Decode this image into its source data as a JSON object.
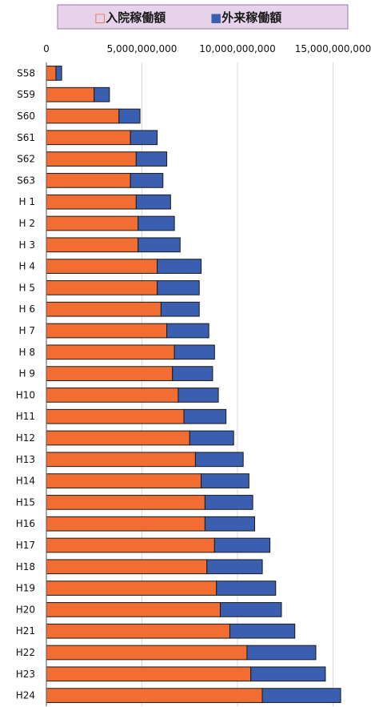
{
  "chart_data": {
    "type": "bar",
    "orientation": "horizontal",
    "stacked": true,
    "legend_position": "top",
    "grid": true,
    "xlim": [
      0,
      17000000000
    ],
    "x_ticks": [
      0,
      5000000000,
      10000000000,
      15000000000
    ],
    "x_tick_labels": [
      "0",
      "5,000,000,000",
      "10,000,000,000",
      "15,000,000,000"
    ],
    "categories": [
      "S58",
      "S59",
      "S60",
      "S61",
      "S62",
      "S63",
      "H 1",
      "H 2",
      "H 3",
      "H 4",
      "H 5",
      "H 6",
      "H 7",
      "H 8",
      "H 9",
      "H10",
      "H11",
      "H12",
      "H13",
      "H14",
      "H15",
      "H16",
      "H17",
      "H18",
      "H19",
      "H20",
      "H21",
      "H22",
      "H23",
      "H24"
    ],
    "series": [
      {
        "name": "入院稼働額",
        "color": "#f26d32",
        "marker": "□",
        "values": [
          500000000,
          2500000000,
          3800000000,
          4400000000,
          4700000000,
          4400000000,
          4700000000,
          4800000000,
          4800000000,
          5800000000,
          5800000000,
          6000000000,
          6300000000,
          6700000000,
          6600000000,
          6900000000,
          7200000000,
          7500000000,
          7800000000,
          8100000000,
          8300000000,
          8300000000,
          8800000000,
          8400000000,
          8900000000,
          9100000000,
          9600000000,
          10500000000,
          10700000000,
          11300000000
        ]
      },
      {
        "name": "外来稼働額",
        "color": "#3a5fb0",
        "marker": "■",
        "values": [
          300000000,
          800000000,
          1100000000,
          1400000000,
          1600000000,
          1700000000,
          1800000000,
          1900000000,
          2200000000,
          2300000000,
          2200000000,
          2000000000,
          2200000000,
          2100000000,
          2100000000,
          2100000000,
          2200000000,
          2300000000,
          2500000000,
          2500000000,
          2500000000,
          2600000000,
          2900000000,
          2900000000,
          3100000000,
          3200000000,
          3400000000,
          3600000000,
          3900000000,
          4100000000
        ]
      }
    ]
  }
}
